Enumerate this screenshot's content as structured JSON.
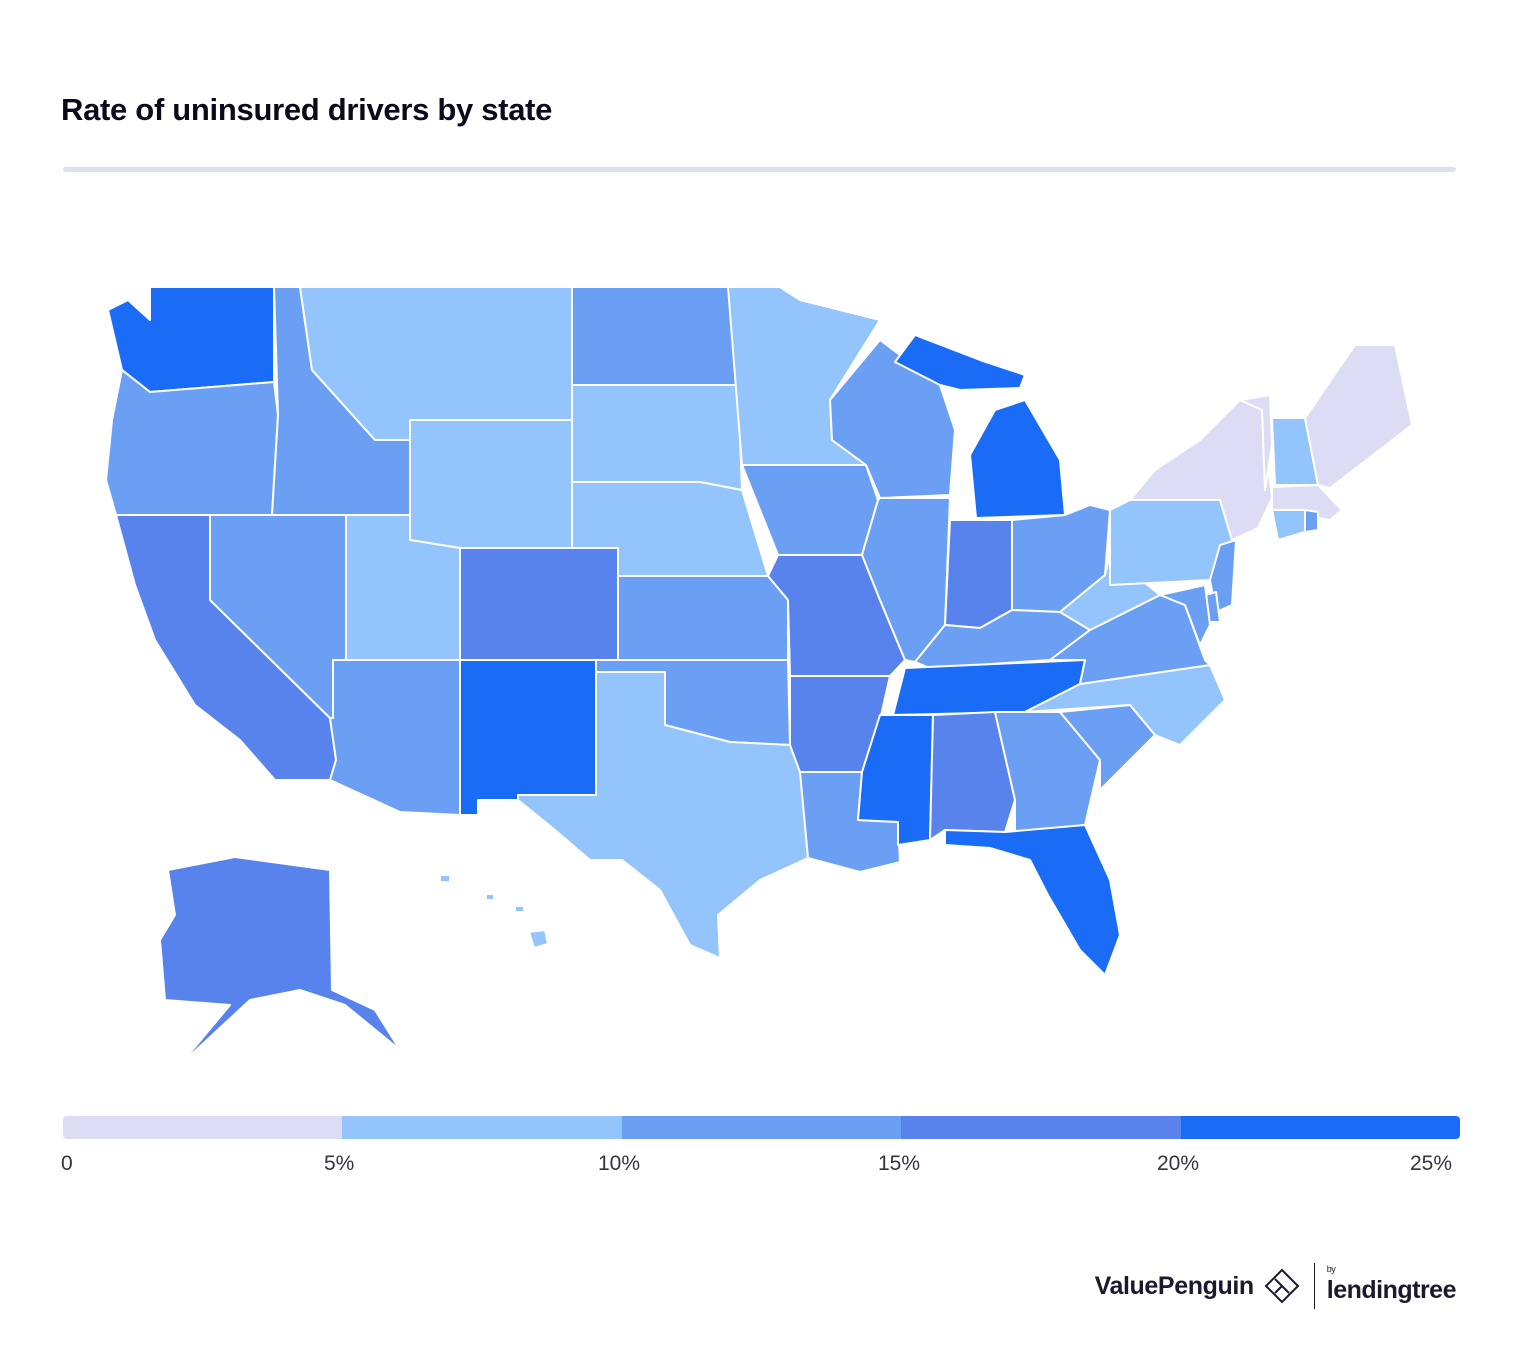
{
  "title": "Rate of uninsured drivers by state",
  "legend": {
    "ticks": [
      "0",
      "5%",
      "10%",
      "15%",
      "20%",
      "25%"
    ],
    "colors": [
      "#dcdcf5",
      "#93c5fc",
      "#6b9ff4",
      "#5882ec",
      "#1a6cf7"
    ]
  },
  "footer": {
    "brand": "ValuePenguin",
    "partner_by": "by",
    "partner": "lendingtree"
  },
  "chart_data": {
    "type": "choropleth",
    "title": "Rate of uninsured drivers by state",
    "scale": {
      "min": 0,
      "max": 25,
      "unit": "%",
      "bins": [
        [
          0,
          5
        ],
        [
          5,
          10
        ],
        [
          10,
          15
        ],
        [
          15,
          20
        ],
        [
          20,
          25
        ]
      ]
    },
    "states": [
      {
        "state": "WA",
        "bin": 4
      },
      {
        "state": "OR",
        "bin": 2
      },
      {
        "state": "CA",
        "bin": 3
      },
      {
        "state": "NV",
        "bin": 2
      },
      {
        "state": "ID",
        "bin": 2
      },
      {
        "state": "MT",
        "bin": 1
      },
      {
        "state": "WY",
        "bin": 1
      },
      {
        "state": "UT",
        "bin": 1
      },
      {
        "state": "AZ",
        "bin": 2
      },
      {
        "state": "CO",
        "bin": 3
      },
      {
        "state": "NM",
        "bin": 4
      },
      {
        "state": "ND",
        "bin": 2
      },
      {
        "state": "SD",
        "bin": 1
      },
      {
        "state": "NE",
        "bin": 1
      },
      {
        "state": "KS",
        "bin": 2
      },
      {
        "state": "OK",
        "bin": 2
      },
      {
        "state": "TX",
        "bin": 1
      },
      {
        "state": "MN",
        "bin": 1
      },
      {
        "state": "IA",
        "bin": 2
      },
      {
        "state": "MO",
        "bin": 3
      },
      {
        "state": "AR",
        "bin": 3
      },
      {
        "state": "LA",
        "bin": 2
      },
      {
        "state": "WI",
        "bin": 2
      },
      {
        "state": "IL",
        "bin": 2
      },
      {
        "state": "MI",
        "bin": 4
      },
      {
        "state": "IN",
        "bin": 3
      },
      {
        "state": "OH",
        "bin": 2
      },
      {
        "state": "KY",
        "bin": 2
      },
      {
        "state": "TN",
        "bin": 4
      },
      {
        "state": "MS",
        "bin": 4
      },
      {
        "state": "AL",
        "bin": 3
      },
      {
        "state": "GA",
        "bin": 2
      },
      {
        "state": "FL",
        "bin": 4
      },
      {
        "state": "SC",
        "bin": 2
      },
      {
        "state": "NC",
        "bin": 1
      },
      {
        "state": "VA",
        "bin": 2
      },
      {
        "state": "WV",
        "bin": 1
      },
      {
        "state": "PA",
        "bin": 1
      },
      {
        "state": "NY",
        "bin": 0
      },
      {
        "state": "VT",
        "bin": 0
      },
      {
        "state": "ME",
        "bin": 0
      },
      {
        "state": "NH",
        "bin": 1
      },
      {
        "state": "MA",
        "bin": 0
      },
      {
        "state": "CT",
        "bin": 1
      },
      {
        "state": "RI",
        "bin": 2
      },
      {
        "state": "NJ",
        "bin": 2
      },
      {
        "state": "DE",
        "bin": 2
      },
      {
        "state": "MD",
        "bin": 2
      },
      {
        "state": "AK",
        "bin": 3
      },
      {
        "state": "HI",
        "bin": 1
      }
    ]
  }
}
